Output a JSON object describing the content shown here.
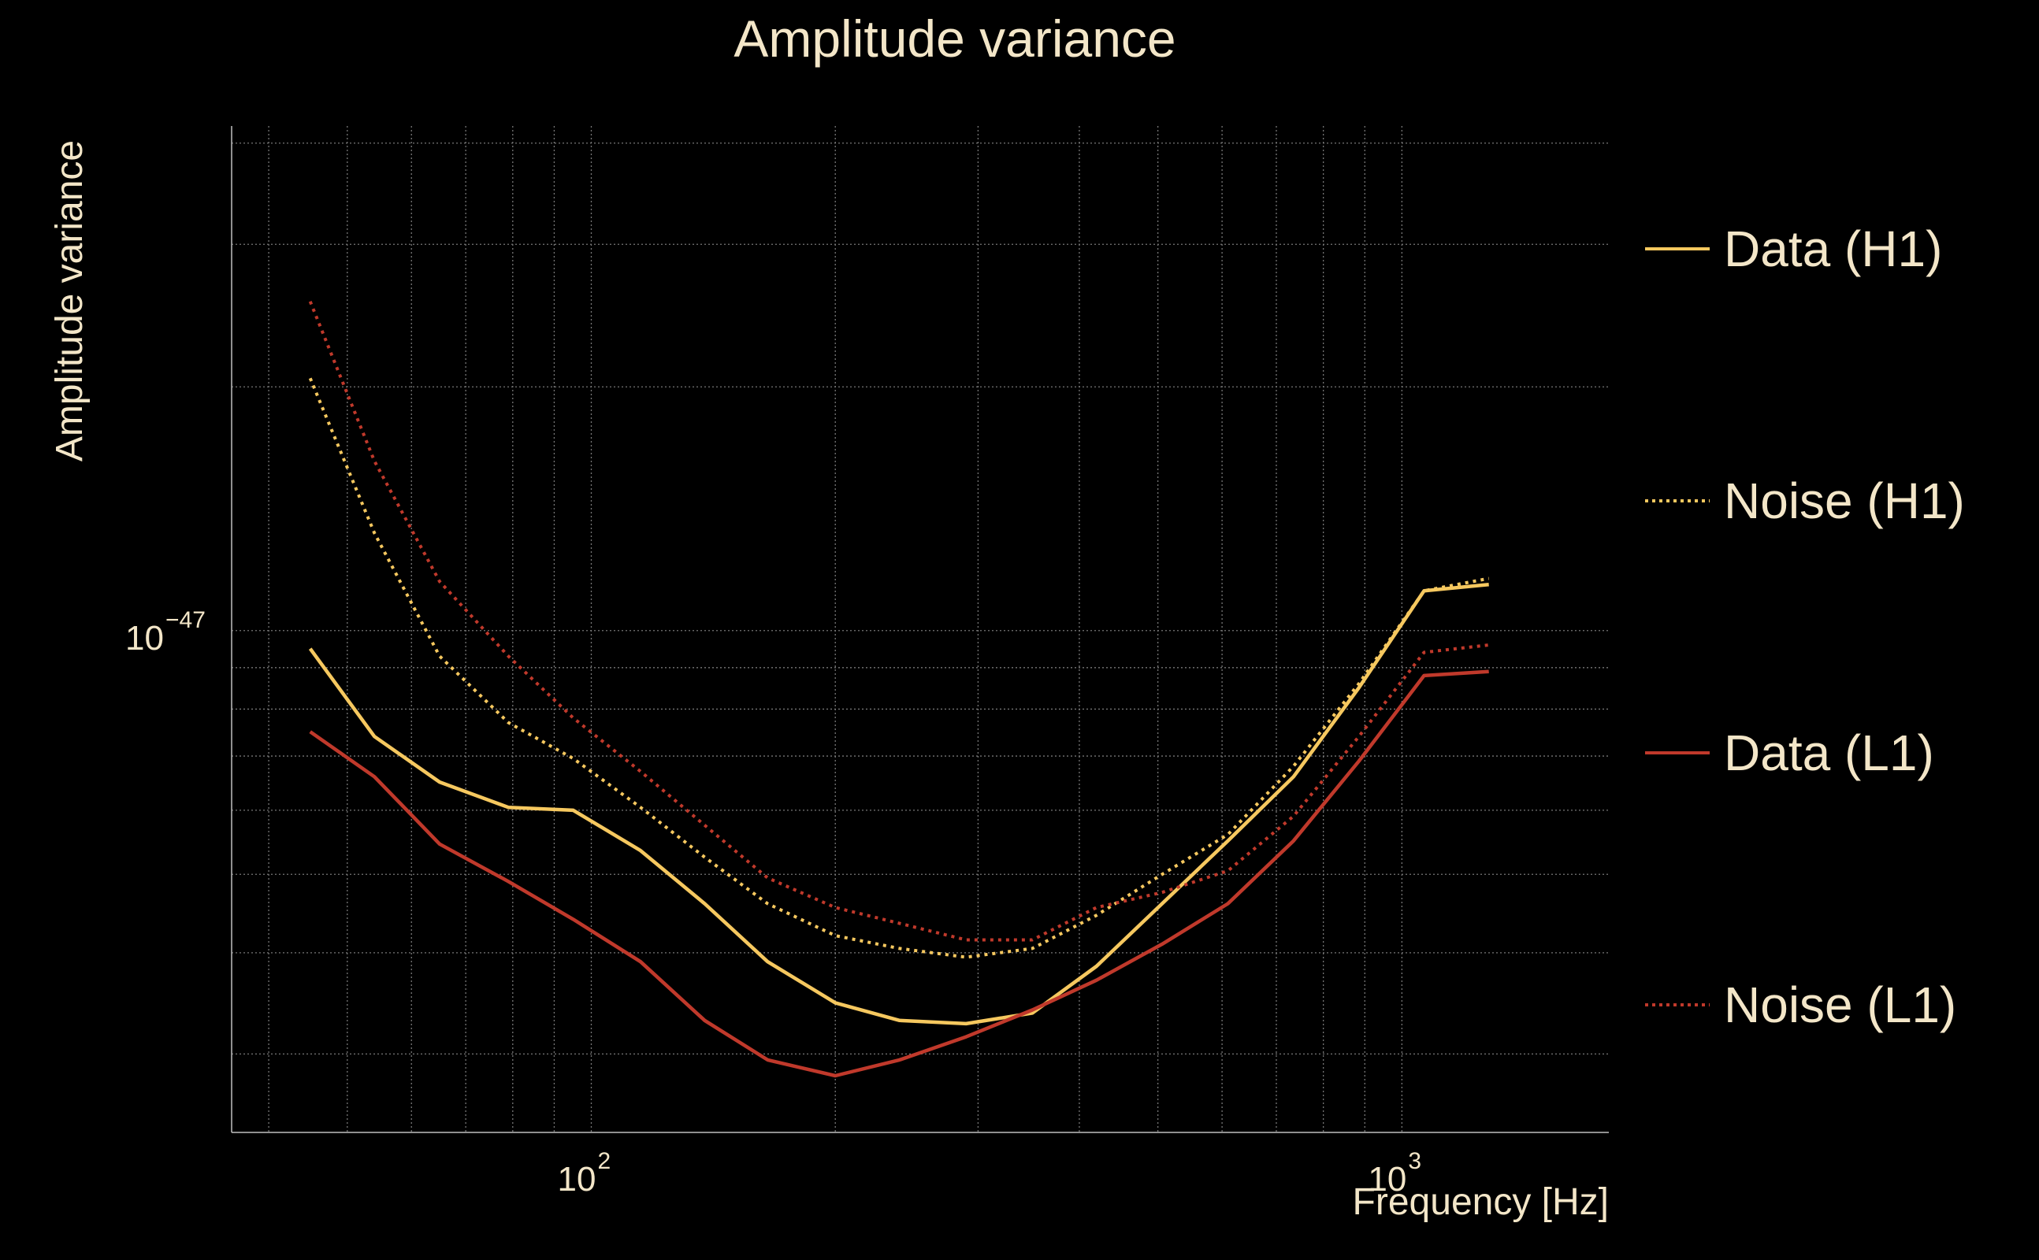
{
  "chart_data": {
    "type": "line",
    "title": "Amplitude variance",
    "xlabel": "Frequency [Hz]",
    "ylabel": "Amplitude variance",
    "xscale": "log",
    "yscale": "log",
    "xlim": [
      36,
      1800
    ],
    "ylim": [
      2.4e-48,
      4.2e-47
    ],
    "x_ticks": [
      {
        "base": "10",
        "exp": "2",
        "value": 100
      },
      {
        "base": "10",
        "exp": "3",
        "value": 1000
      }
    ],
    "y_ticks": [
      {
        "base": "10",
        "exp": "−47",
        "value": 1e-47
      }
    ],
    "grid": true,
    "legend_position": "right",
    "x": [
      45,
      54,
      65,
      79,
      95,
      115,
      138,
      165,
      200,
      240,
      290,
      350,
      420,
      506,
      610,
      735,
      885,
      1065,
      1280
    ],
    "series": [
      {
        "name": "Data (H1)",
        "color": "#f6c85f",
        "style": "solid",
        "values": [
          9.5e-48,
          7.4e-48,
          6.5e-48,
          6.05e-48,
          6e-48,
          5.35e-48,
          4.6e-48,
          3.9e-48,
          3.47e-48,
          3.3e-48,
          3.27e-48,
          3.37e-48,
          3.85e-48,
          4.6e-48,
          5.5e-48,
          6.6e-48,
          8.5e-48,
          1.12e-47,
          1.14e-47
        ]
      },
      {
        "name": "Noise (H1)",
        "color": "#f6c85f",
        "style": "dotted",
        "values": [
          2.05e-47,
          1.32e-47,
          9.3e-48,
          7.7e-48,
          6.95e-48,
          6.05e-48,
          5.25e-48,
          4.6e-48,
          4.2e-48,
          4.05e-48,
          3.95e-48,
          4.05e-48,
          4.45e-48,
          5e-48,
          5.6e-48,
          6.8e-48,
          8.6e-48,
          1.12e-47,
          1.16e-47
        ]
      },
      {
        "name": "Data (L1)",
        "color": "#c0392b",
        "style": "solid",
        "values": [
          7.5e-48,
          6.6e-48,
          5.45e-48,
          4.9e-48,
          4.4e-48,
          3.9e-48,
          3.3e-48,
          2.95e-48,
          2.82e-48,
          2.95e-48,
          3.15e-48,
          3.4e-48,
          3.7e-48,
          4.1e-48,
          4.6e-48,
          5.5e-48,
          6.9e-48,
          8.8e-48,
          8.9e-48
        ]
      },
      {
        "name": "Noise (L1)",
        "color": "#c0392b",
        "style": "dotted",
        "values": [
          2.55e-47,
          1.62e-47,
          1.15e-47,
          9.3e-48,
          7.8e-48,
          6.7e-48,
          5.75e-48,
          4.95e-48,
          4.55e-48,
          4.35e-48,
          4.15e-48,
          4.15e-48,
          4.55e-48,
          4.75e-48,
          5.05e-48,
          5.9e-48,
          7.4e-48,
          9.4e-48,
          9.6e-48
        ]
      }
    ]
  }
}
